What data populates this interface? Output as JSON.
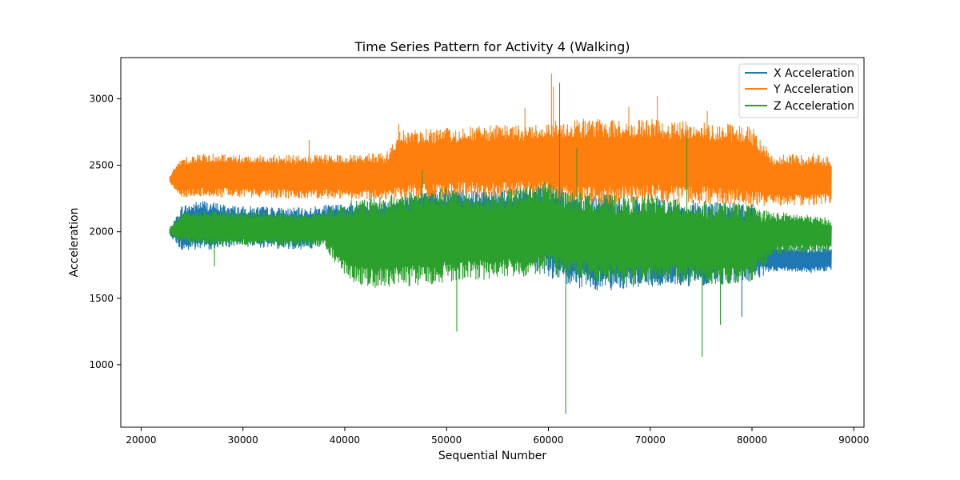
{
  "chart_data": {
    "type": "line",
    "title": "Time Series Pattern for Activity 4 (Walking)",
    "xlabel": "Sequential Number",
    "ylabel": "Acceleration",
    "xlim": [
      18000,
      91000
    ],
    "ylim": [
      530,
      3310
    ],
    "xticks": [
      20000,
      30000,
      40000,
      50000,
      60000,
      70000,
      80000,
      90000
    ],
    "yticks": [
      1000,
      1500,
      2000,
      2500,
      3000
    ],
    "grid": false,
    "legend_position": "top-right",
    "colors": {
      "x": "#1f77b4",
      "y": "#ff7f0e",
      "z": "#2ca02c"
    },
    "series": [
      {
        "name": "X Acceleration",
        "color": "#1f77b4",
        "x": [
          22800,
          24000,
          26000,
          28000,
          30000,
          32000,
          34000,
          36000,
          38000,
          40000,
          42000,
          44000,
          46000,
          48000,
          50000,
          52000,
          54000,
          56000,
          58000,
          60000,
          62000,
          64000,
          66000,
          68000,
          70000,
          72000,
          74000,
          76000,
          78000,
          80000,
          82000,
          84000,
          86000,
          87800
        ],
        "low": [
          1980,
          1850,
          1860,
          1880,
          1890,
          1880,
          1870,
          1870,
          1880,
          1900,
          1880,
          1880,
          1860,
          1840,
          1800,
          1780,
          1760,
          1750,
          1740,
          1660,
          1580,
          1560,
          1560,
          1580,
          1580,
          1590,
          1590,
          1600,
          1610,
          1620,
          1700,
          1700,
          1690,
          1710
        ],
        "high": [
          2010,
          2200,
          2240,
          2210,
          2190,
          2190,
          2180,
          2180,
          2200,
          2210,
          2230,
          2230,
          2280,
          2300,
          2330,
          2330,
          2330,
          2340,
          2340,
          2360,
          2330,
          2290,
          2280,
          2250,
          2260,
          2240,
          2240,
          2230,
          2220,
          2220,
          1900,
          1880,
          1880,
          1880
        ]
      },
      {
        "name": "Y Acceleration",
        "color": "#ff7f0e",
        "x": [
          22800,
          24000,
          26000,
          28000,
          30000,
          32000,
          34000,
          36000,
          38000,
          40000,
          42000,
          44000,
          45500,
          48000,
          50000,
          52000,
          54000,
          56000,
          58000,
          60000,
          62000,
          64000,
          66000,
          68000,
          70000,
          72000,
          74000,
          76000,
          78000,
          80000,
          82000,
          84000,
          86000,
          87800
        ],
        "low": [
          2370,
          2250,
          2260,
          2260,
          2260,
          2260,
          2250,
          2250,
          2250,
          2240,
          2240,
          2240,
          2240,
          2250,
          2250,
          2260,
          2250,
          2260,
          2270,
          2260,
          2200,
          2200,
          2200,
          2220,
          2220,
          2210,
          2210,
          2210,
          2200,
          2180,
          2200,
          2200,
          2200,
          2220
        ],
        "high": [
          2420,
          2570,
          2590,
          2590,
          2580,
          2580,
          2580,
          2570,
          2580,
          2580,
          2590,
          2590,
          2760,
          2780,
          2780,
          2790,
          2800,
          2800,
          2800,
          2830,
          2850,
          2850,
          2850,
          2830,
          2850,
          2830,
          2830,
          2820,
          2810,
          2790,
          2580,
          2580,
          2590,
          2560
        ]
      },
      {
        "name": "Z Acceleration",
        "color": "#2ca02c",
        "x": [
          22800,
          24000,
          26000,
          28000,
          30000,
          32000,
          34000,
          36000,
          38000,
          40200,
          42000,
          44000,
          46000,
          48000,
          50000,
          52000,
          54000,
          56000,
          58000,
          60000,
          62000,
          64000,
          66000,
          68000,
          70000,
          72000,
          74000,
          76000,
          78000,
          80000,
          82000,
          84000,
          86000,
          87800
        ],
        "low": [
          1980,
          1920,
          1900,
          1890,
          1900,
          1900,
          1890,
          1890,
          1880,
          1640,
          1580,
          1580,
          1580,
          1600,
          1620,
          1640,
          1640,
          1650,
          1660,
          1700,
          1640,
          1640,
          1620,
          1600,
          1620,
          1630,
          1620,
          1610,
          1600,
          1620,
          1820,
          1840,
          1840,
          1850
        ],
        "high": [
          2030,
          2150,
          2160,
          2160,
          2150,
          2150,
          2140,
          2140,
          2160,
          2230,
          2260,
          2270,
          2310,
          2320,
          2330,
          2300,
          2300,
          2320,
          2340,
          2380,
          2300,
          2290,
          2280,
          2270,
          2280,
          2250,
          2240,
          2230,
          2220,
          2200,
          2150,
          2140,
          2120,
          2100
        ]
      }
    ],
    "spikes": [
      {
        "series": 1,
        "x": 36500,
        "y": 2690
      },
      {
        "series": 1,
        "x": 45300,
        "y": 2810
      },
      {
        "series": 1,
        "x": 57700,
        "y": 2930
      },
      {
        "series": 1,
        "x": 60300,
        "y": 3190
      },
      {
        "series": 1,
        "x": 60500,
        "y": 3090
      },
      {
        "series": 1,
        "x": 67900,
        "y": 2940
      },
      {
        "series": 1,
        "x": 70700,
        "y": 3020
      },
      {
        "series": 1,
        "x": 75600,
        "y": 2910
      },
      {
        "series": 2,
        "x": 27200,
        "y": 1740
      },
      {
        "series": 2,
        "x": 47600,
        "y": 2460
      },
      {
        "series": 2,
        "x": 51000,
        "y": 1250
      },
      {
        "series": 2,
        "x": 61100,
        "y": 3120
      },
      {
        "series": 2,
        "x": 61700,
        "y": 630
      },
      {
        "series": 2,
        "x": 62800,
        "y": 2630
      },
      {
        "series": 2,
        "x": 73600,
        "y": 2710
      },
      {
        "series": 2,
        "x": 75100,
        "y": 1060
      },
      {
        "series": 2,
        "x": 76900,
        "y": 1300
      },
      {
        "series": 0,
        "x": 79000,
        "y": 1360
      }
    ]
  }
}
